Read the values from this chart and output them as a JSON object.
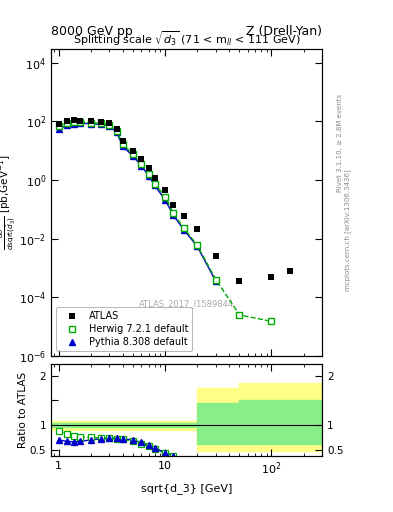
{
  "title_left": "8000 GeV pp",
  "title_right": "Z (Drell-Yan)",
  "plot_title": "Splitting scale $\\sqrt{d_3}$ (71 < m$_{ll}$ < 111 GeV)",
  "ylabel_main": "$\\frac{d\\sigma}{d\\sqrt{\\bar{d}_3}}$ [pb,GeV$^{-1}$]",
  "ylabel_ratio": "Ratio to ATLAS",
  "xlabel": "sqrt{d_3} [GeV]",
  "watermark": "ATLAS_2017_I1589844",
  "right_label1": "Rivet 3.1.10, ≥ 2.8M events",
  "right_label2": "mcplots.cern.ch [arXiv:1306.3436]",
  "ylim_main": [
    1e-06,
    30000.0
  ],
  "ylim_ratio": [
    0.38,
    2.25
  ],
  "xlim": [
    0.85,
    300
  ],
  "atlas_x": [
    1.0,
    1.2,
    1.4,
    1.6,
    2.0,
    2.5,
    3.0,
    3.5,
    4.0,
    5.0,
    6.0,
    7.0,
    8.0,
    10.0,
    12.0,
    15.0,
    20.0,
    30.0,
    50.0,
    100.0,
    150.0
  ],
  "atlas_y": [
    80,
    100,
    110,
    105,
    100,
    95,
    85,
    55,
    22,
    10,
    5.0,
    2.5,
    1.2,
    0.45,
    0.14,
    0.06,
    0.022,
    0.0025,
    0.00035,
    0.0005,
    0.0008
  ],
  "herwig_x": [
    1.0,
    1.2,
    1.4,
    1.6,
    2.0,
    2.5,
    3.0,
    3.5,
    4.0,
    5.0,
    6.0,
    7.0,
    8.0,
    10.0,
    12.0,
    15.0,
    20.0,
    30.0,
    50.0,
    100.0
  ],
  "herwig_y": [
    70,
    88,
    97,
    95,
    90,
    84,
    74,
    47,
    17,
    7.5,
    3.5,
    1.65,
    0.75,
    0.27,
    0.072,
    0.023,
    0.006,
    0.0004,
    2.5e-05,
    1.5e-05
  ],
  "pythia_x": [
    1.0,
    1.2,
    1.4,
    1.6,
    2.0,
    2.5,
    3.0,
    3.5,
    4.0,
    5.0,
    6.0,
    7.0,
    8.0,
    10.0,
    12.0,
    15.0,
    20.0,
    30.0
  ],
  "pythia_y": [
    55,
    72,
    82,
    85,
    83,
    78,
    70,
    43,
    14,
    6.5,
    3.0,
    1.4,
    0.65,
    0.21,
    0.062,
    0.02,
    0.0055,
    0.00035
  ],
  "herwig_ratio_x": [
    1.0,
    1.2,
    1.4,
    1.6,
    2.0,
    2.5,
    3.0,
    3.5,
    4.0,
    5.0,
    6.0,
    7.0,
    8.0,
    10.0,
    12.0,
    15.0,
    20.0
  ],
  "herwig_ratio_y": [
    0.88,
    0.82,
    0.78,
    0.76,
    0.75,
    0.74,
    0.73,
    0.72,
    0.72,
    0.67,
    0.62,
    0.57,
    0.52,
    0.43,
    0.38,
    0.3,
    0.22
  ],
  "pythia_ratio_x": [
    1.0,
    1.2,
    1.4,
    1.6,
    2.0,
    2.5,
    3.0,
    3.5,
    4.0,
    5.0,
    6.0,
    7.0,
    8.0,
    10.0,
    12.0,
    15.0,
    20.0,
    30.0
  ],
  "pythia_ratio_y": [
    0.7,
    0.67,
    0.66,
    0.67,
    0.7,
    0.72,
    0.73,
    0.74,
    0.72,
    0.7,
    0.65,
    0.59,
    0.54,
    0.44,
    0.38,
    0.3,
    0.22,
    0.12
  ],
  "atlas_color": "#000000",
  "herwig_color": "#00aa00",
  "pythia_color": "#0000cc",
  "band1_yellow_xlo": 0.85,
  "band1_yellow_xhi": 20.0,
  "band1_yellow_lo": 0.91,
  "band1_yellow_hi": 1.09,
  "band1_green_lo": 0.96,
  "band1_green_hi": 1.04,
  "band2_yellow_xlo": 20.0,
  "band2_yellow_xhi": 50.0,
  "band2_yellow_lo": 0.48,
  "band2_yellow_hi": 1.75,
  "band2_green_lo": 0.62,
  "band2_green_hi": 1.45,
  "band3_yellow_xlo": 50.0,
  "band3_yellow_xhi": 300.0,
  "band3_yellow_lo": 0.48,
  "band3_yellow_hi": 1.85,
  "band3_green_lo": 0.62,
  "band3_green_hi": 1.5
}
